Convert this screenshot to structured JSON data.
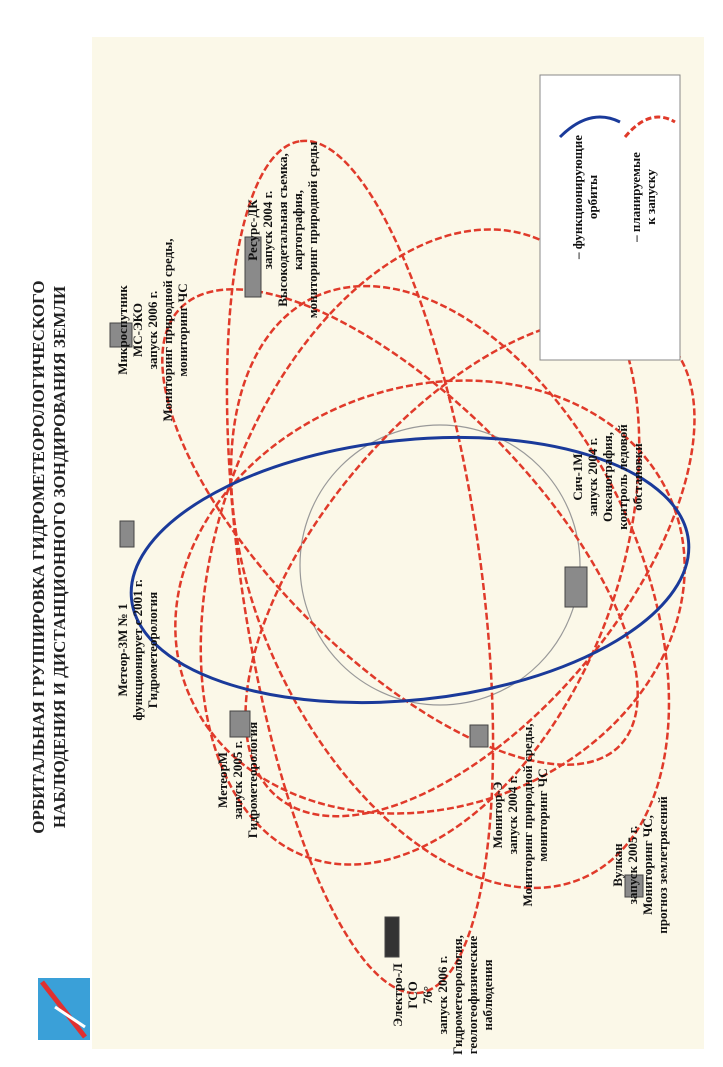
{
  "header": {
    "title": [
      "ОРБИТАЛЬНАЯ ГРУППИРОВКА ГИДРОМЕТЕОРОЛОГИЧЕСКОГО",
      "НАБЛЮДЕНИЯ И ДИСТАНЦИОННОГО ЗОНДИРОВАНИЯ ЗЕМЛИ"
    ]
  },
  "satellites": [
    {
      "lines": [
        "Метеор-3М № 1",
        "функционирует с 2001 г.",
        "Гидрометеорология"
      ]
    },
    {
      "lines": [
        "Микроспутник",
        "МС-ЭКО",
        "запуск 2006 г.",
        "Мониторинг природной среды,",
        "мониторинг ЧС"
      ]
    },
    {
      "lines": [
        "Ресурс-ДК",
        "запуск 2004 г.",
        "Высокодетальная съемка,",
        "картография,",
        "мониторинг природной среды"
      ]
    },
    {
      "lines": [
        "МетеорМ",
        "запуск 2005 г.",
        "Гидрометеорология"
      ]
    },
    {
      "lines": [
        "Электро-Л",
        "ГСО",
        "76°",
        "запуск 2006 г.",
        "Гидрометеорология,",
        "геологеофизические",
        "наблюдения"
      ]
    },
    {
      "lines": [
        "Монитор-Э",
        "запуск 2004 г.",
        "Мониторинг природной среды,",
        "мониторинг ЧС"
      ]
    },
    {
      "lines": [
        "Сич-1М",
        "запуск 2004 г.",
        "Океанография,",
        "контроль ледовой",
        "обстановки"
      ]
    },
    {
      "lines": [
        "Вулкан",
        "запуск 2005 г.",
        "Мониторинг ЧС,",
        "прогноз землетрясений"
      ]
    }
  ],
  "legend": [
    {
      "lines": [
        "– функционирующие",
        "орбиты"
      ]
    },
    {
      "lines": [
        "– планируемые",
        "к запуску"
      ]
    }
  ]
}
